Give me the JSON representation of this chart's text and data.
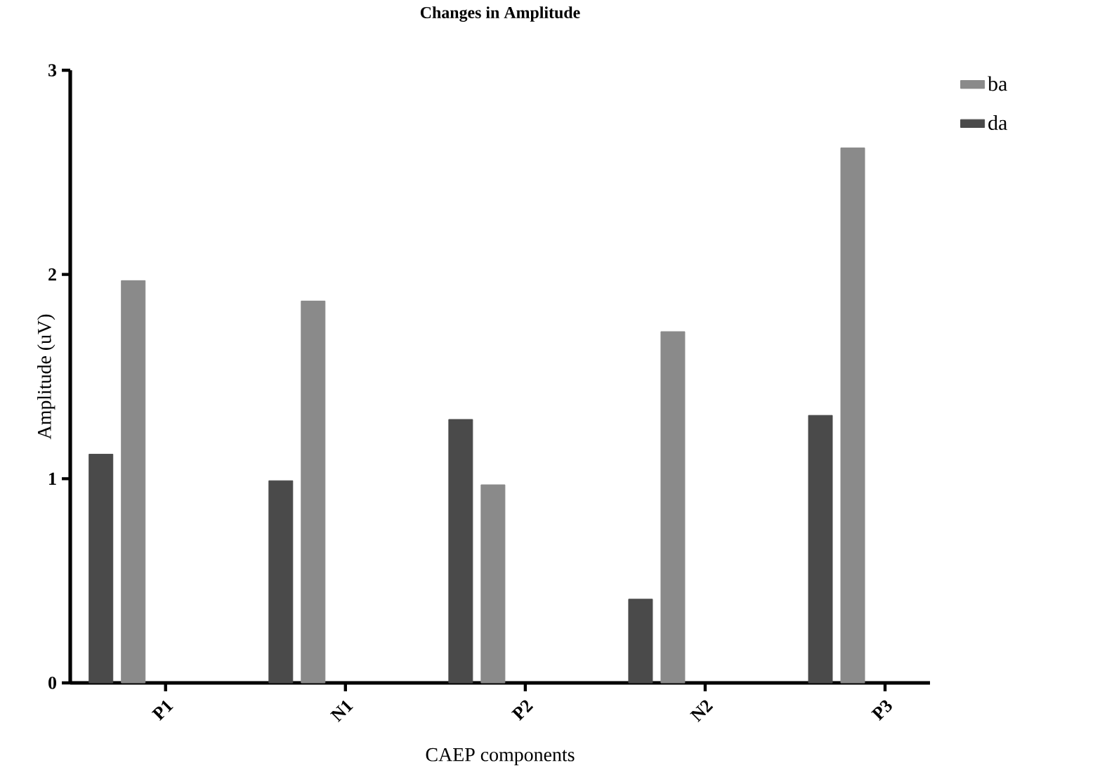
{
  "chart_data": {
    "type": "bar",
    "title": "Changes in Amplitude",
    "xlabel": "CAEP components",
    "ylabel": "Amplitude (uV)",
    "categories": [
      "P1",
      "N1",
      "P2",
      "N2",
      "P3"
    ],
    "series": [
      {
        "name": "ba",
        "color": "#8a8a8a",
        "values": [
          1.97,
          1.87,
          0.97,
          1.72,
          2.62
        ]
      },
      {
        "name": "da",
        "color": "#4a4a4a",
        "values": [
          1.12,
          0.99,
          1.29,
          0.41,
          1.31
        ]
      }
    ],
    "ylim": [
      0,
      3
    ],
    "yticks": [
      0,
      1,
      2,
      3
    ],
    "grid": false,
    "legend": "top right"
  }
}
